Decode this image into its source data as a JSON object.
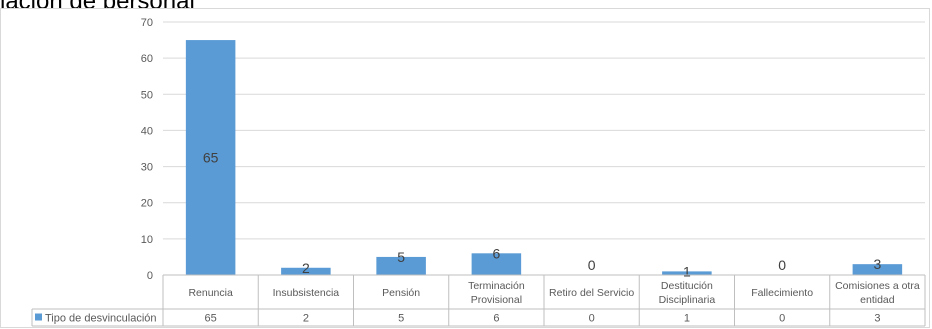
{
  "header": {
    "title": "lación de personal"
  },
  "chart_data": {
    "type": "bar",
    "title": "",
    "xlabel": "",
    "ylabel": "",
    "ylim": [
      0,
      70
    ],
    "yticks": [
      0,
      10,
      20,
      30,
      40,
      50,
      60,
      70
    ],
    "grid": true,
    "legend": "data-table",
    "categories": [
      [
        "Renuncia"
      ],
      [
        "Insubsistencia"
      ],
      [
        "Pensión"
      ],
      [
        "Terminación",
        "Provisional"
      ],
      [
        "Retiro del Servicio"
      ],
      [
        "Destitución",
        "Disciplinaria"
      ],
      [
        "Fallecimiento"
      ],
      [
        "Comisiones a otra",
        "entidad"
      ]
    ],
    "series": [
      {
        "name": "Tipo de desvinculación",
        "color": "#5b9bd5",
        "values": [
          65,
          2,
          5,
          6,
          0,
          1,
          0,
          3
        ]
      }
    ]
  }
}
